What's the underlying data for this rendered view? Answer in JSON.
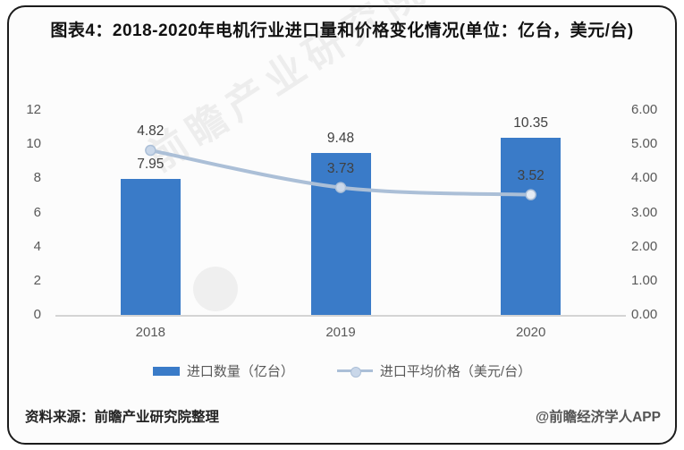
{
  "title": "图表4：2018-2020年电机行业进口量和价格变化情况(单位：亿台，美元/台)",
  "watermark": "前瞻产业研究院",
  "footer": {
    "source": "资料来源：前瞻产业研究院整理",
    "brand": "@前瞻经济学人APP"
  },
  "colors": {
    "bar": "#3a7bc8",
    "line": "#abbfd7",
    "marker_fill": "#c9d7e9",
    "marker_fill_last": "#e4ebf4",
    "axis_line": "#d4d4d4",
    "tick_text": "#595959",
    "label_text": "#404040",
    "title_text": "#111111"
  },
  "chart_data": {
    "type": "bar",
    "combo": "bar+line",
    "categories": [
      "2018",
      "2019",
      "2020"
    ],
    "series": [
      {
        "name": "进口数量（亿台）",
        "type": "bar",
        "axis": "left",
        "values": [
          7.95,
          9.48,
          10.35
        ],
        "labels": [
          "7.95",
          "9.48",
          "10.35"
        ]
      },
      {
        "name": "进口平均价格（美元/台）",
        "type": "line",
        "axis": "right",
        "values": [
          4.82,
          3.73,
          3.52
        ],
        "labels": [
          "4.82",
          "3.73",
          "3.52"
        ]
      }
    ],
    "left_axis": {
      "min": 0,
      "max": 12,
      "ticks": [
        "12",
        "10",
        "8",
        "6",
        "4",
        "2",
        "0"
      ]
    },
    "right_axis": {
      "min": 0,
      "max": 6,
      "ticks": [
        "6.00",
        "5.00",
        "4.00",
        "3.00",
        "2.00",
        "1.00",
        "0.00"
      ]
    },
    "grid": false,
    "legend_position": "bottom"
  }
}
